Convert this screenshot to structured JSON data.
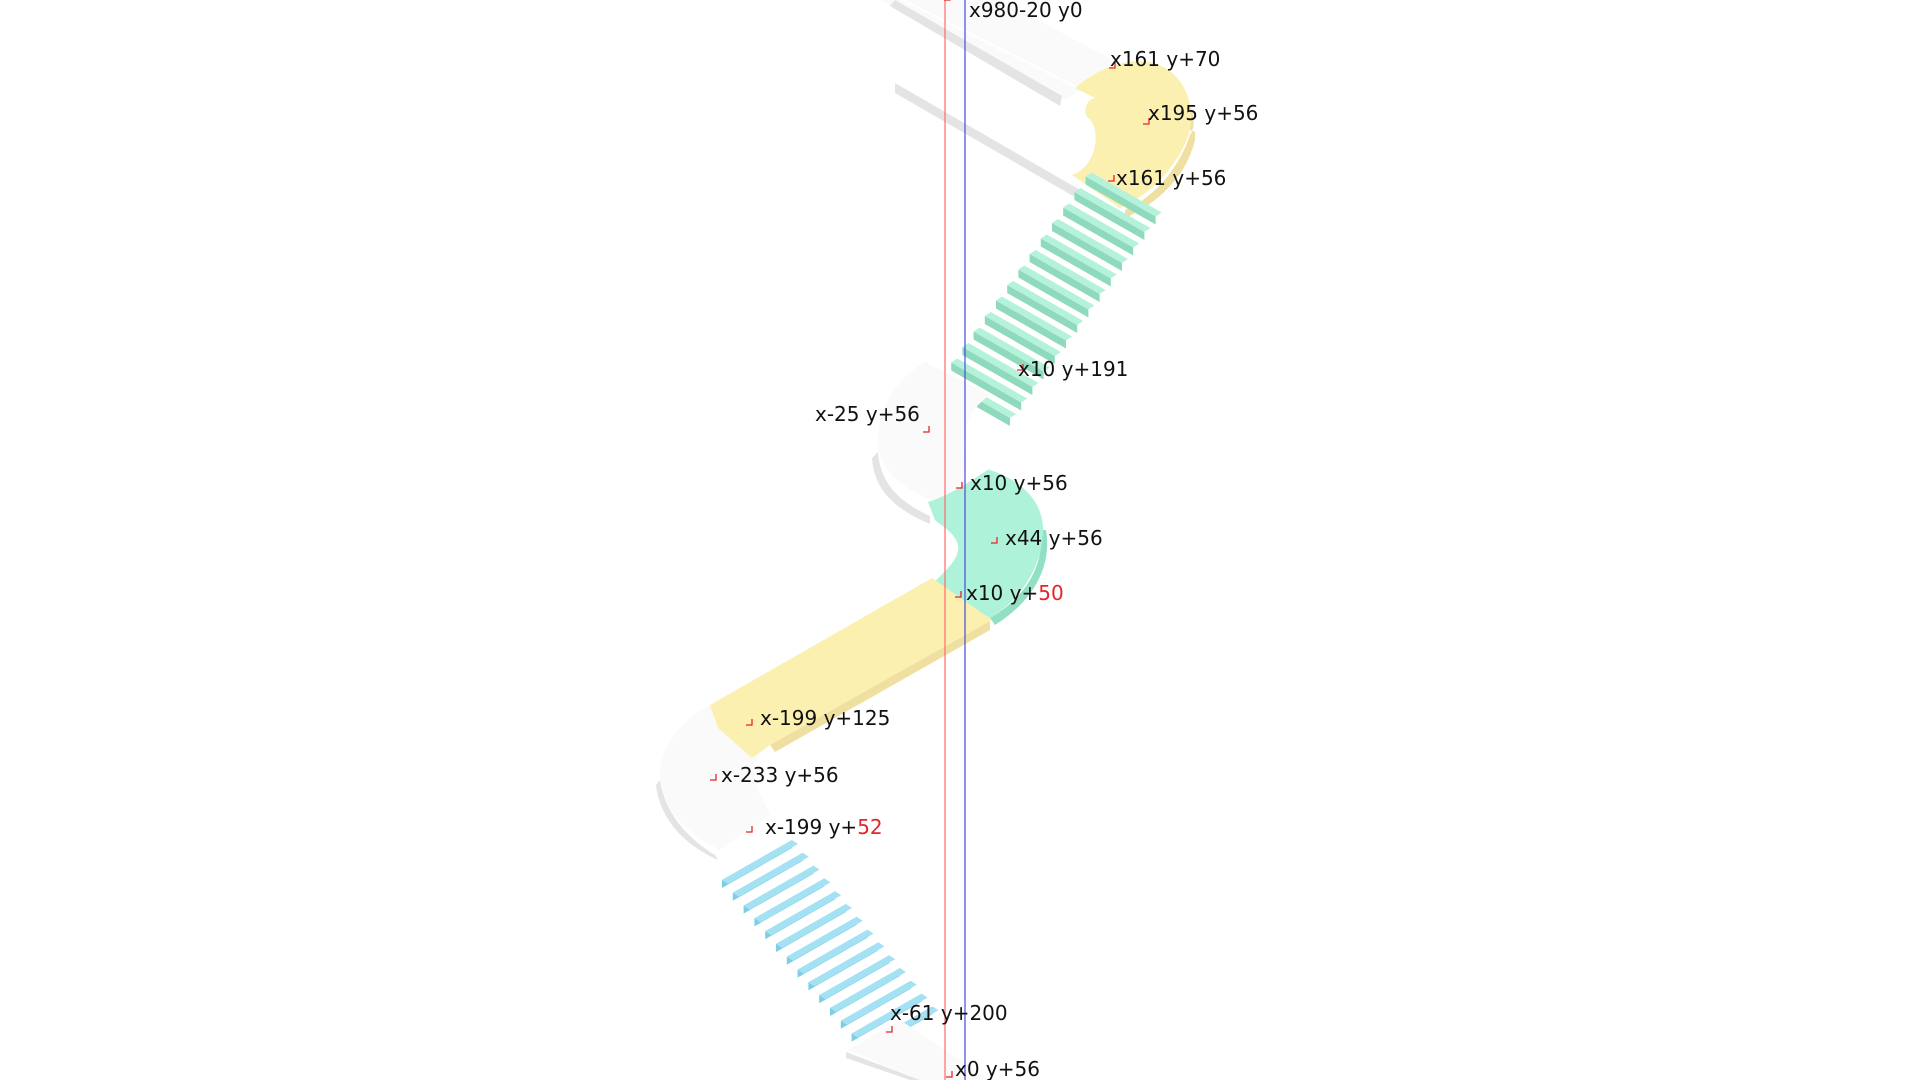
{
  "colors": {
    "background": "#ffffff",
    "platform_top": "#fafafa",
    "platform_side": "#e4e4e4",
    "yellow": "#fbf0b0",
    "yellow_side": "#efe0a2",
    "mint": "#aef2d9",
    "mint_side": "#92e0c3",
    "stair_green": "#b4f2da",
    "stair_green_side": "#8fd9bd",
    "stair_blue": "#a4e2f3",
    "stair_blue_side": "#7fcde4",
    "guide_red": "#ff6a6a",
    "guide_blue": "#4a4adf",
    "marker_red": "#e3262b",
    "highlight_red": "#e3262b"
  },
  "labels": {
    "top": "x980-20 y0",
    "p1": "x161 y+70",
    "p2": "x195 y+56",
    "p3": "x161 y+56",
    "p4": "x10 y+191",
    "p5": "x-25 y+56",
    "p6": "x10 y+56",
    "p7": "x44 y+56",
    "p8": {
      "prefix": "x10 y+",
      "highlight": "50"
    },
    "p9": "x-199 y+125",
    "p10": "x-233 y+56",
    "p11": {
      "prefix": "x-199 y+",
      "highlight": "52"
    },
    "p12": "x-61 y+200",
    "p13": "x0 y+56"
  },
  "diagram": {
    "type": "isometric stair/path layout",
    "stair_upper_step_count": 14,
    "stair_lower_step_count": 14
  }
}
